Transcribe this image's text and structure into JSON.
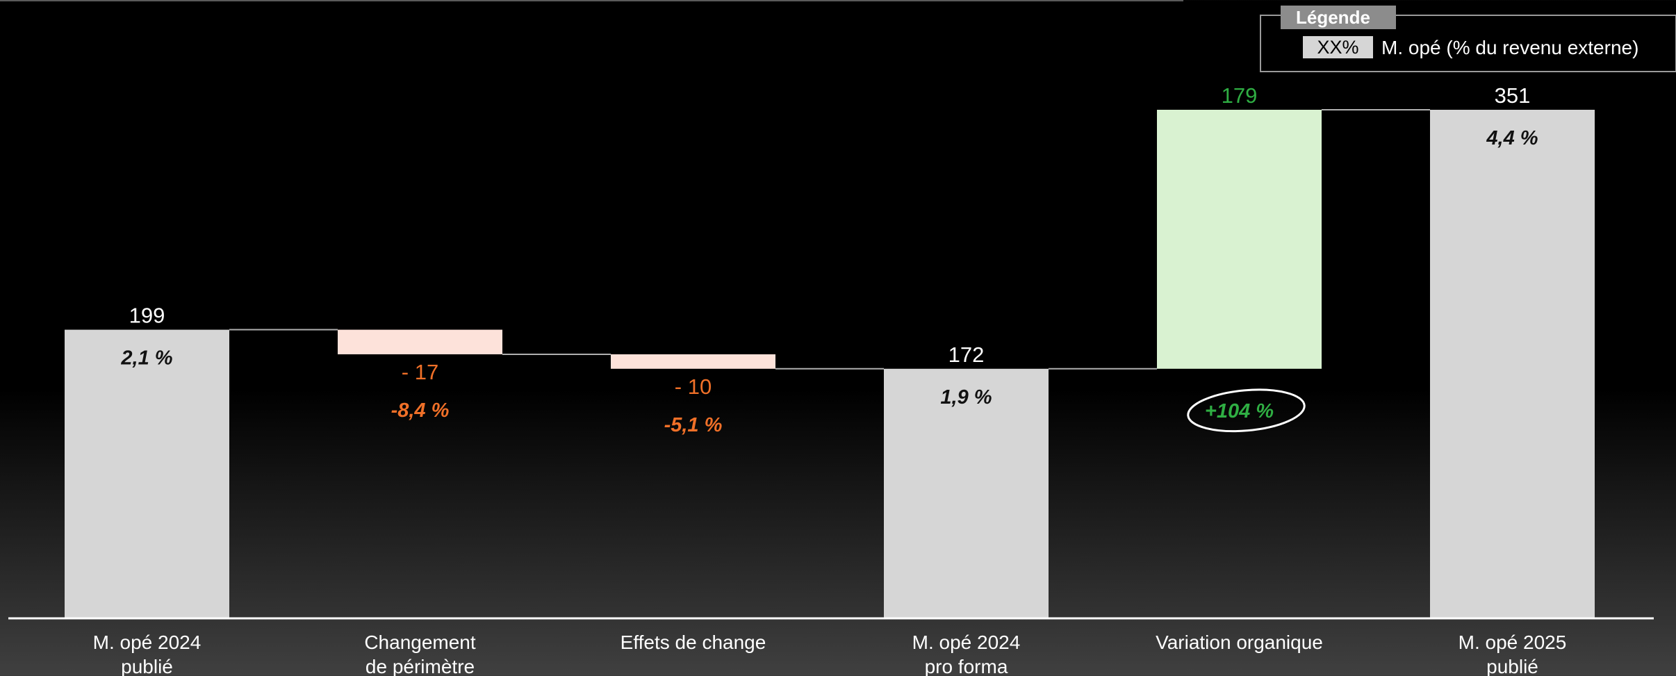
{
  "legend": {
    "title": "Légende",
    "swatch_label": "XX%",
    "description": "M. opé (% du revenu externe)"
  },
  "colors": {
    "total_bar": "#d6d6d6",
    "negative_bar": "#fde2da",
    "positive_bar": "#d9f2d1",
    "negative_text": "#f07028",
    "positive_text": "#2fae43",
    "axis": "#ffffff",
    "connector": "#b0b0b0"
  },
  "chart_data": {
    "type": "bar",
    "subtype": "waterfall",
    "title": "",
    "xlabel": "",
    "ylabel": "",
    "ylim": [
      0,
      351
    ],
    "categories": [
      [
        "M. opé 2024",
        "publié"
      ],
      [
        "Changement",
        "de périmètre"
      ],
      [
        "Effets de change"
      ],
      [
        "M. opé 2024",
        "pro forma"
      ],
      [
        "Variation organique"
      ],
      [
        "M. opé 2025",
        "publié"
      ]
    ],
    "steps": [
      {
        "kind": "total",
        "value": 199,
        "label": "199",
        "pct": "2,1 %"
      },
      {
        "kind": "delta",
        "value": -17,
        "label": "- 17",
        "pct": "-8,4 %"
      },
      {
        "kind": "delta",
        "value": -10,
        "label": "- 10",
        "pct": "-5,1 %"
      },
      {
        "kind": "total",
        "value": 172,
        "label": "172",
        "pct": "1,9 %"
      },
      {
        "kind": "delta",
        "value": 179,
        "label": "179",
        "pct": "+104 %",
        "highlight": true
      },
      {
        "kind": "total",
        "value": 351,
        "label": "351",
        "pct": "4,4 %"
      }
    ]
  }
}
